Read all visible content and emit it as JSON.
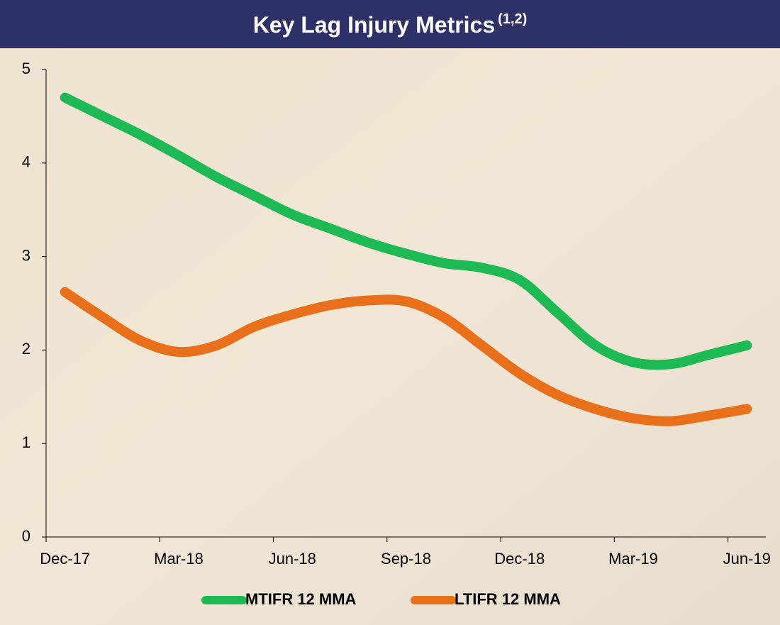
{
  "chart_data": {
    "type": "line",
    "title": "Key Lag Injury Metrics",
    "title_superscript": "(1,2)",
    "categories": [
      "Dec-17",
      null,
      null,
      "Mar-18",
      null,
      null,
      "Jun-18",
      null,
      null,
      "Sep-18",
      null,
      null,
      "Dec-18",
      null,
      null,
      "Mar-19",
      null,
      null,
      "Jun-19"
    ],
    "series": [
      {
        "name": "MTIFR 12 MMA",
        "color": "#1db954",
        "values": [
          4.7,
          4.5,
          4.3,
          4.08,
          3.85,
          3.65,
          3.45,
          3.3,
          3.15,
          3.03,
          2.93,
          2.88,
          2.75,
          2.4,
          2.05,
          1.87,
          1.85,
          1.95,
          2.05
        ]
      },
      {
        "name": "LTIFR 12 MMA",
        "color": "#e8701a",
        "values": [
          2.62,
          2.35,
          2.1,
          1.98,
          2.05,
          2.25,
          2.38,
          2.48,
          2.53,
          2.52,
          2.35,
          2.05,
          1.75,
          1.52,
          1.37,
          1.27,
          1.24,
          1.3,
          1.37
        ]
      }
    ],
    "ylim": [
      0,
      5
    ],
    "yticks": [
      0,
      1,
      2,
      3,
      4,
      5
    ],
    "legend": "bottom"
  }
}
